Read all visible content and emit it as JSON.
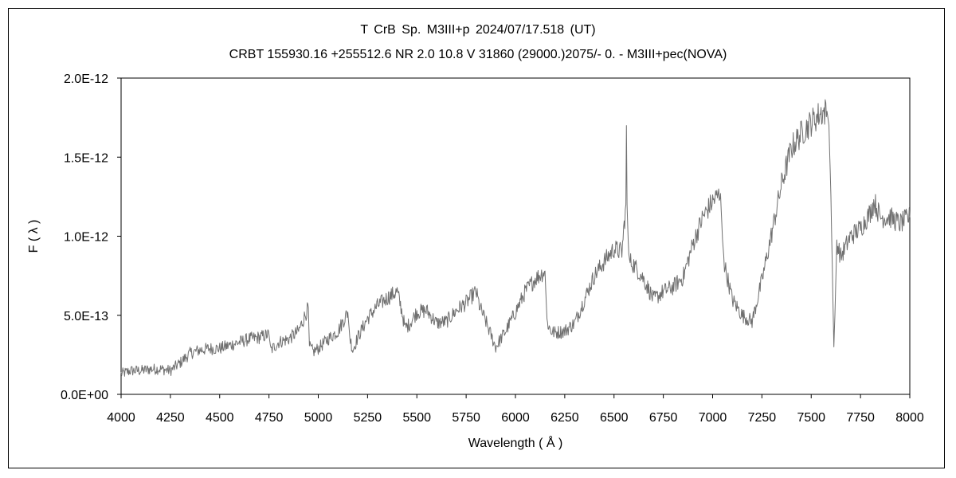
{
  "chart_data": {
    "type": "line",
    "title": "T CrB    Sp. M3III+p    2024/07/17.518 (UT)",
    "subtitle": "CRBT 155930.16 +255512.6 NR 2.0 10.8 V 31860 (29000.)2075/-  0. - M3III+pec(NOVA)",
    "xlabel": "Wavelength ( Å )",
    "ylabel": "F ( λ )",
    "xlim": [
      4000,
      8000
    ],
    "ylim": [
      0,
      2e-12
    ],
    "x_ticks": [
      "4000",
      "4250",
      "4500",
      "4750",
      "5000",
      "5250",
      "5500",
      "5750",
      "6000",
      "6250",
      "6500",
      "6750",
      "7000",
      "7250",
      "7500",
      "7750",
      "8000"
    ],
    "y_ticks": [
      "0.0E+00",
      "5.0E-13",
      "1.0E-12",
      "1.5E-12",
      "2.0E-12"
    ],
    "grid": false,
    "line_color": "#707070",
    "series": [
      {
        "x": [
          4000,
          4050,
          4100,
          4150,
          4200,
          4250,
          4300,
          4350,
          4400,
          4450,
          4500,
          4550,
          4600,
          4650,
          4700,
          4750,
          4760,
          4800,
          4850,
          4900,
          4950,
          4955,
          4975,
          5000,
          5050,
          5100,
          5150,
          5160,
          5175,
          5200,
          5250,
          5300,
          5350,
          5400,
          5420,
          5440,
          5460,
          5500,
          5550,
          5600,
          5650,
          5700,
          5750,
          5800,
          5820,
          5850,
          5880,
          5900,
          5950,
          6000,
          6050,
          6100,
          6150,
          6160,
          6180,
          6200,
          6250,
          6300,
          6350,
          6400,
          6450,
          6500,
          6540,
          6560,
          6563,
          6566,
          6575,
          6600,
          6650,
          6700,
          6750,
          6800,
          6850,
          6900,
          6950,
          7000,
          7040,
          7050,
          7060,
          7100,
          7150,
          7200,
          7250,
          7300,
          7350,
          7400,
          7450,
          7500,
          7550,
          7580,
          7590,
          7600,
          7610,
          7615,
          7620,
          7630,
          7650,
          7700,
          7750,
          7800,
          7820,
          7850,
          7900,
          7950,
          8000
        ],
        "y": [
          1.3e-13,
          1.5e-13,
          1.5e-13,
          1.6e-13,
          1.6e-13,
          1.5e-13,
          2e-13,
          2.6e-13,
          2.8e-13,
          2.9e-13,
          2.9e-13,
          3.1e-13,
          3.3e-13,
          3.5e-13,
          3.6e-13,
          3.8e-13,
          2.8e-13,
          3.3e-13,
          3.5e-13,
          4e-13,
          5.5e-13,
          3e-13,
          2.7e-13,
          2.9e-13,
          3.5e-13,
          4e-13,
          5.2e-13,
          3.6e-13,
          2.8e-13,
          3.6e-13,
          4.8e-13,
          5.6e-13,
          6.1e-13,
          6.5e-13,
          5.5e-13,
          4.2e-13,
          4.4e-13,
          5.2e-13,
          5.3e-13,
          4.5e-13,
          4.6e-13,
          5.3e-13,
          5.8e-13,
          6.5e-13,
          5.5e-13,
          4.6e-13,
          3.6e-13,
          3e-13,
          4e-13,
          5.2e-13,
          6.5e-13,
          7.3e-13,
          7.8e-13,
          4.6e-13,
          4e-13,
          3.9e-13,
          4e-13,
          4.5e-13,
          6e-13,
          7.5e-13,
          8.4e-13,
          9.2e-13,
          9e-13,
          1.2e-12,
          1.7e-12,
          1.2e-12,
          8.5e-13,
          8.2e-13,
          7.3e-13,
          6e-13,
          6.5e-13,
          6.8e-13,
          7.4e-13,
          9.5e-13,
          1.12e-12,
          1.22e-12,
          1.27e-12,
          9.8e-13,
          8.2e-13,
          6e-13,
          5e-13,
          4.6e-13,
          7.2e-13,
          1.02e-12,
          1.33e-12,
          1.56e-12,
          1.65e-12,
          1.72e-12,
          1.78e-12,
          1.79e-12,
          1.7e-12,
          1.25e-12,
          6e-13,
          3e-13,
          5e-13,
          9.6e-13,
          8.7e-13,
          1e-12,
          1.05e-12,
          1.15e-12,
          1.22e-12,
          1.12e-12,
          1.12e-12,
          1.08e-12,
          1.12e-12
        ]
      }
    ]
  }
}
